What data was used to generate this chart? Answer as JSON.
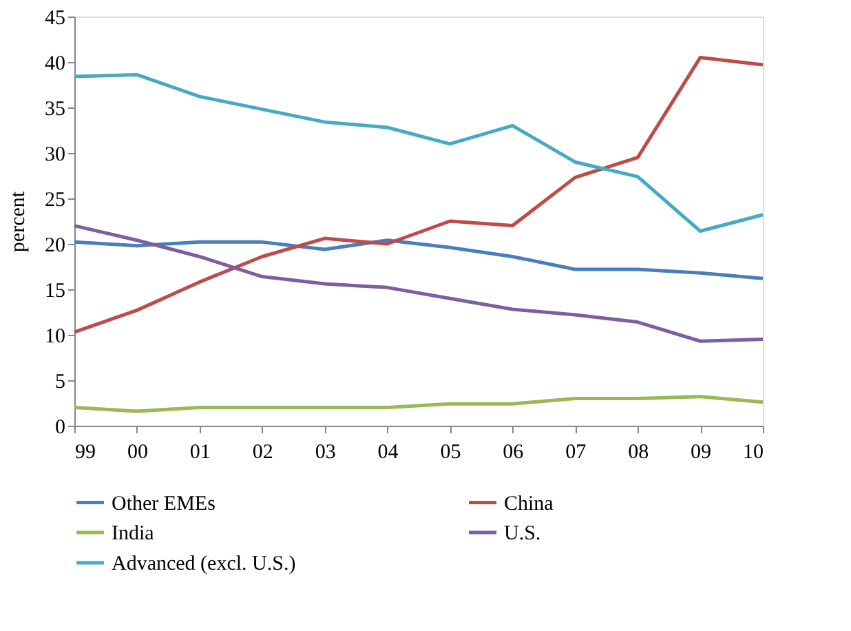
{
  "chart_data": {
    "type": "line",
    "ylabel": "percent",
    "categories": [
      "99",
      "00",
      "01",
      "02",
      "03",
      "04",
      "05",
      "06",
      "07",
      "08",
      "09",
      "10"
    ],
    "ylim": [
      0,
      45
    ],
    "yticks": [
      0,
      5,
      10,
      15,
      20,
      25,
      30,
      35,
      40,
      45
    ],
    "grid": false,
    "legend": "bottom",
    "marker": "none",
    "series": [
      {
        "name": "Other EMEs",
        "color": "#4a7ebb",
        "values": [
          20.2,
          19.8,
          20.2,
          20.2,
          19.4,
          20.4,
          19.6,
          18.6,
          17.2,
          17.2,
          16.8,
          16.2
        ]
      },
      {
        "name": "China",
        "color": "#be4b48",
        "values": [
          10.3,
          12.7,
          15.8,
          18.6,
          20.6,
          20.0,
          22.5,
          22.0,
          27.3,
          29.5,
          40.5,
          39.7
        ]
      },
      {
        "name": "India",
        "color": "#98b954",
        "values": [
          2.0,
          1.6,
          2.0,
          2.0,
          2.0,
          2.0,
          2.4,
          2.4,
          3.0,
          3.0,
          3.2,
          2.6
        ]
      },
      {
        "name": "U.S.",
        "color": "#7d5fa0",
        "values": [
          22.0,
          20.4,
          18.6,
          16.4,
          15.6,
          15.2,
          14.0,
          12.8,
          12.2,
          11.4,
          9.3,
          9.5
        ]
      },
      {
        "name": "Advanced (excl. U.S.)",
        "color": "#46aac5",
        "values": [
          38.4,
          38.6,
          36.2,
          34.8,
          33.4,
          32.8,
          31.0,
          33.0,
          29.0,
          27.4,
          21.4,
          23.2
        ]
      }
    ]
  }
}
